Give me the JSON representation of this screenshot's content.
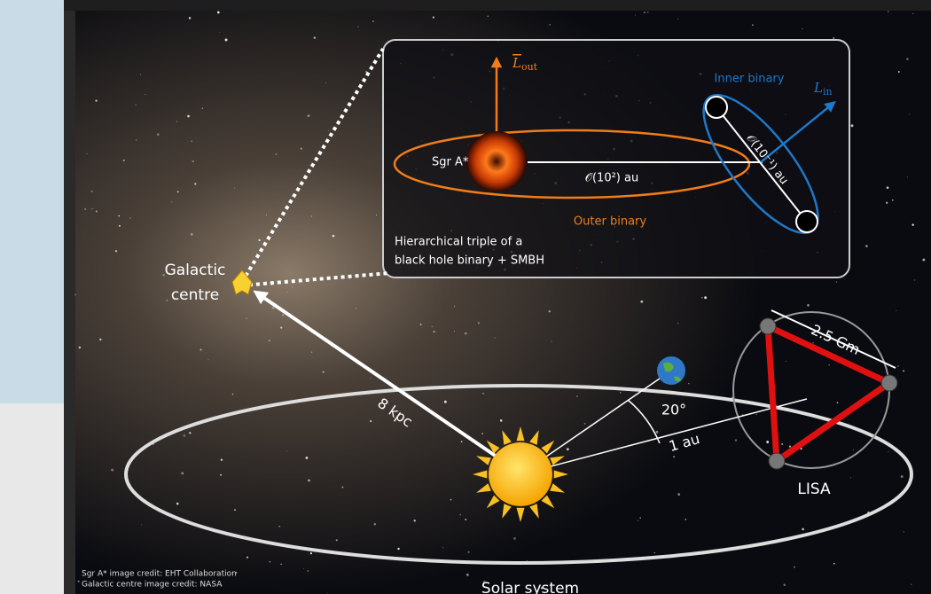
{
  "diagram": {
    "inset": {
      "l_out": {
        "symbol": "L",
        "subscript": "out"
      },
      "l_in": {
        "symbol": "L",
        "subscript": "in"
      },
      "inner_binary": "Inner binary",
      "sgr_a": "Sgr A*",
      "outer_distance": "𝒪(10²) au",
      "inner_distance": "𝒪(10⁻¹) au",
      "outer_binary": "Outer binary",
      "caption": [
        "Hierarchical triple of a",
        "black hole binary + SMBH"
      ]
    },
    "galactic_centre": [
      "Galactic",
      "centre"
    ],
    "distance_gc": "8 kpc",
    "angle": "20°",
    "orbit_radius": "1 au",
    "arm_length": "2.5 Gm",
    "lisa": "LISA",
    "credits": [
      "Sgr A* image credit: EHT Collaboration",
      "Galactic centre image credit: NASA"
    ],
    "solar_system": "Solar system"
  }
}
